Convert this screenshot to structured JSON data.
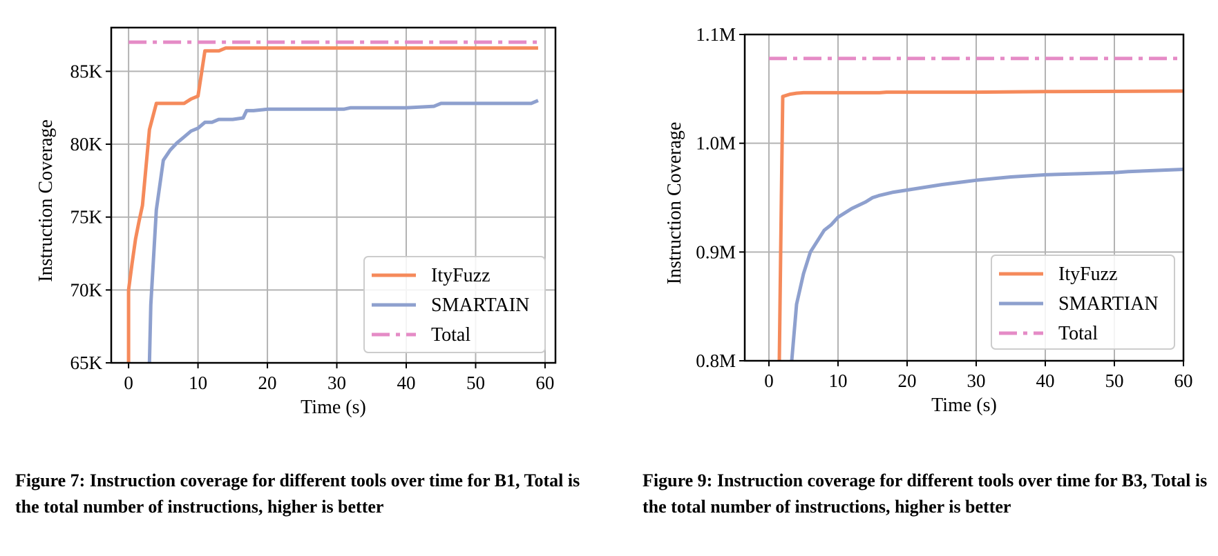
{
  "chart_data": [
    {
      "type": "line",
      "xlabel": "Time (s)",
      "ylabel": "Instruction Coverage",
      "xlim": [
        -2.5,
        61.5
      ],
      "ylim": [
        65000,
        88000
      ],
      "xticks": [
        0,
        10,
        20,
        30,
        40,
        50,
        60
      ],
      "xtick_labels": [
        "0",
        "10",
        "20",
        "30",
        "40",
        "50",
        "60"
      ],
      "yticks": [
        65000,
        70000,
        75000,
        80000,
        85000
      ],
      "ytick_labels": [
        "65K",
        "70K",
        "75K",
        "80K",
        "85K"
      ],
      "grid": true,
      "legend_position": "lower-right",
      "series": [
        {
          "name": "ItyFuzz",
          "color": "#f58a5b",
          "style": "solid",
          "x": [
            0,
            0,
            0.5,
            1,
            1.5,
            2,
            3,
            4,
            8,
            9,
            10,
            11,
            13,
            14,
            59
          ],
          "y": [
            65000,
            70000,
            71800,
            73500,
            74700,
            75800,
            81000,
            82800,
            82800,
            83100,
            83300,
            86400,
            86400,
            86600,
            86600
          ]
        },
        {
          "name": "SMARTAIN",
          "color": "#8ea0ce",
          "style": "solid",
          "x": [
            3,
            3.2,
            4,
            5,
            6,
            7,
            8,
            9,
            10,
            11,
            12,
            13,
            15,
            16.5,
            17,
            18,
            20,
            22,
            28,
            31,
            32,
            40,
            44,
            45,
            50,
            58,
            59
          ],
          "y": [
            65000,
            69000,
            75500,
            78900,
            79600,
            80100,
            80500,
            80900,
            81100,
            81500,
            81500,
            81700,
            81700,
            81800,
            82300,
            82300,
            82400,
            82400,
            82400,
            82400,
            82500,
            82500,
            82600,
            82800,
            82800,
            82800,
            83000
          ]
        },
        {
          "name": "Total",
          "color": "#e58bc6",
          "style": "dashdot",
          "x": [
            0,
            59
          ],
          "y": [
            87000,
            87000
          ]
        }
      ]
    },
    {
      "type": "line",
      "xlabel": "Time (s)",
      "ylabel": "Instruction Coverage",
      "xlim": [
        -3.5,
        60.0
      ],
      "ylim": [
        800000,
        1100000
      ],
      "xticks": [
        0,
        10,
        20,
        30,
        40,
        50,
        60
      ],
      "xtick_labels": [
        "0",
        "10",
        "20",
        "30",
        "40",
        "50",
        "60"
      ],
      "yticks": [
        800000,
        900000,
        1000000,
        1100000
      ],
      "ytick_labels": [
        "0.8M",
        "0.9M",
        "1.0M",
        "1.1M"
      ],
      "grid": true,
      "legend_position": "lower-right",
      "series": [
        {
          "name": "ItyFuzz",
          "color": "#f58a5b",
          "style": "solid",
          "x": [
            1.5,
            1.8,
            2,
            3,
            4,
            5,
            10,
            16,
            17,
            30,
            40,
            60
          ],
          "y": [
            800000,
            950000,
            1043000,
            1045000,
            1046000,
            1046500,
            1046500,
            1046500,
            1047000,
            1047000,
            1047500,
            1048000
          ]
        },
        {
          "name": "SMARTIAN",
          "color": "#8ea0ce",
          "style": "solid",
          "x": [
            3.3,
            4,
            5,
            6,
            8,
            9,
            10,
            12,
            14,
            15,
            16,
            18,
            20,
            25,
            30,
            35,
            40,
            50,
            52,
            60
          ],
          "y": [
            800000,
            852000,
            880000,
            900000,
            920000,
            925000,
            932000,
            940000,
            946000,
            950000,
            952000,
            955000,
            957000,
            962000,
            966000,
            969000,
            971000,
            973000,
            974000,
            976000
          ]
        },
        {
          "name": "Total",
          "color": "#e58bc6",
          "style": "dashdot",
          "x": [
            0,
            60
          ],
          "y": [
            1078000,
            1078000
          ]
        }
      ]
    }
  ],
  "captions": {
    "left": "Figure 7: Instruction coverage for different tools over time for B1, Total is the total number of instructions, higher is better",
    "right": "Figure 9: Instruction coverage for different tools over time for B3, Total is the total number of instructions, higher is better"
  }
}
